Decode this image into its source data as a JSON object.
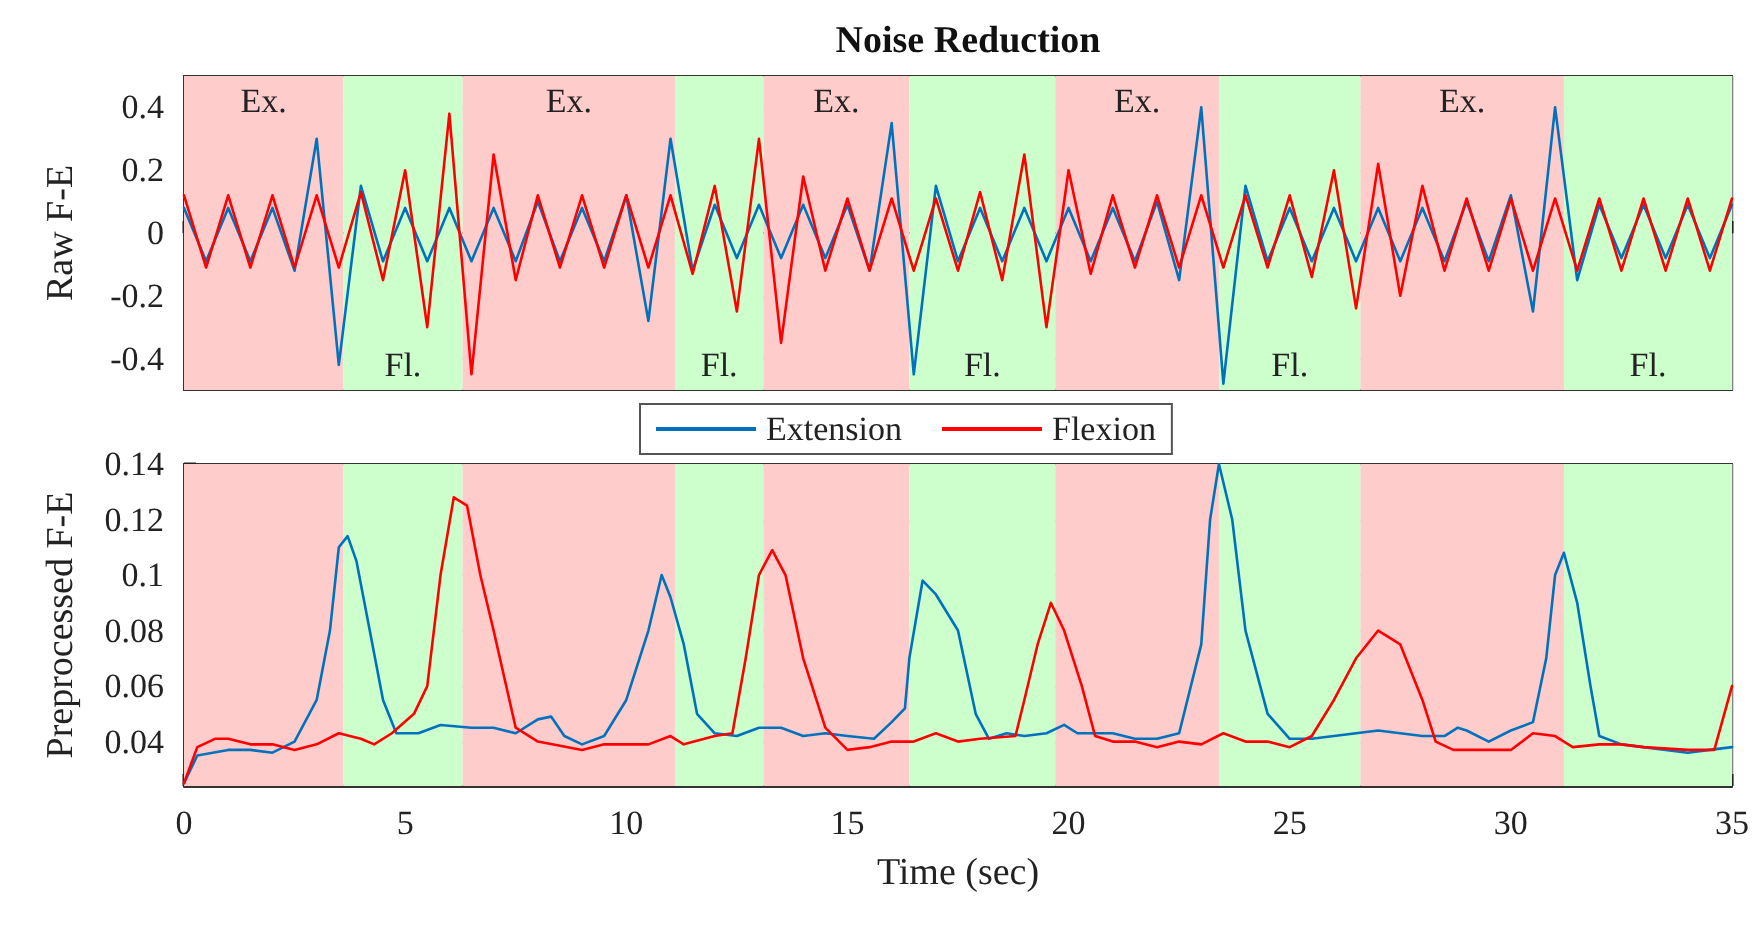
{
  "chart_data": [
    {
      "type": "line",
      "title": "Noise Reduction",
      "ylabel": "Raw F-E",
      "x": [
        0,
        0.5,
        1,
        1.5,
        2,
        2.5,
        3,
        3.5,
        4,
        4.5,
        5,
        5.5,
        6,
        6.5,
        7,
        7.5,
        8,
        8.5,
        9,
        9.5,
        10,
        10.5,
        11,
        11.5,
        12,
        12.5,
        13,
        13.5,
        14,
        14.5,
        15,
        15.5,
        16,
        16.5,
        17,
        17.5,
        18,
        18.5,
        19,
        19.5,
        20,
        20.5,
        21,
        21.5,
        22,
        22.5,
        23,
        23.5,
        24,
        24.5,
        25,
        25.5,
        26,
        26.5,
        27,
        27.5,
        28,
        28.5,
        29,
        29.5,
        30,
        30.5,
        31,
        31.5,
        32,
        32.5,
        33,
        33.5,
        34,
        34.5,
        35
      ],
      "series": [
        {
          "color": "#0072bd",
          "values": [
            0.08,
            -0.09,
            0.08,
            -0.09,
            0.08,
            -0.12,
            0.3,
            -0.42,
            0.15,
            -0.09,
            0.08,
            -0.09,
            0.08,
            -0.09,
            0.08,
            -0.09,
            0.1,
            -0.09,
            0.08,
            -0.09,
            0.12,
            -0.28,
            0.3,
            -0.12,
            0.09,
            -0.08,
            0.09,
            -0.08,
            0.09,
            -0.08,
            0.09,
            -0.12,
            0.35,
            -0.45,
            0.15,
            -0.09,
            0.08,
            -0.09,
            0.08,
            -0.09,
            0.08,
            -0.09,
            0.08,
            -0.09,
            0.1,
            -0.15,
            0.4,
            -0.48,
            0.15,
            -0.09,
            0.08,
            -0.09,
            0.08,
            -0.09,
            0.08,
            -0.09,
            0.08,
            -0.09,
            0.1,
            -0.09,
            0.12,
            -0.25,
            0.4,
            -0.15,
            0.09,
            -0.08,
            0.09,
            -0.08,
            0.09,
            -0.08,
            0.09
          ]
        },
        {
          "color": "#ff0000",
          "values": [
            0.12,
            -0.11,
            0.12,
            -0.11,
            0.12,
            -0.11,
            0.12,
            -0.11,
            0.13,
            -0.15,
            0.2,
            -0.3,
            0.38,
            -0.45,
            0.25,
            -0.15,
            0.12,
            -0.11,
            0.12,
            -0.11,
            0.12,
            -0.11,
            0.12,
            -0.13,
            0.15,
            -0.25,
            0.3,
            -0.35,
            0.18,
            -0.12,
            0.11,
            -0.12,
            0.11,
            -0.12,
            0.11,
            -0.12,
            0.13,
            -0.15,
            0.25,
            -0.3,
            0.2,
            -0.13,
            0.12,
            -0.11,
            0.12,
            -0.11,
            0.12,
            -0.11,
            0.12,
            -0.11,
            0.12,
            -0.14,
            0.2,
            -0.24,
            0.22,
            -0.2,
            0.15,
            -0.12,
            0.11,
            -0.12,
            0.11,
            -0.12,
            0.11,
            -0.12,
            0.11,
            -0.12,
            0.11,
            -0.12,
            0.11,
            -0.12,
            0.11
          ]
        }
      ],
      "xlim": [
        0,
        35
      ],
      "xticks": [
        0,
        5,
        10,
        15,
        20,
        25,
        30,
        35
      ],
      "ylim": [
        -0.5,
        0.5
      ],
      "yticks": [
        -0.4,
        -0.2,
        0,
        0.2,
        0.4
      ],
      "tick_labels": "y",
      "grid": true,
      "legend": false,
      "bands": [
        {
          "axis": "x",
          "from": 0,
          "to": 3.6,
          "label": "Ex.",
          "color": "#ffcccc"
        },
        {
          "axis": "x",
          "from": 3.6,
          "to": 6.3,
          "label": "Fl.",
          "color": "#ccffcc"
        },
        {
          "axis": "x",
          "from": 6.3,
          "to": 11.1,
          "label": "Ex.",
          "color": "#ffcccc"
        },
        {
          "axis": "x",
          "from": 11.1,
          "to": 13.1,
          "label": "Fl.",
          "color": "#ccffcc"
        },
        {
          "axis": "x",
          "from": 13.1,
          "to": 16.4,
          "label": "Ex.",
          "color": "#ffcccc"
        },
        {
          "axis": "x",
          "from": 16.4,
          "to": 19.7,
          "label": "Fl.",
          "color": "#ccffcc"
        },
        {
          "axis": "x",
          "from": 19.7,
          "to": 23.4,
          "label": "Ex.",
          "color": "#ffcccc"
        },
        {
          "axis": "x",
          "from": 23.4,
          "to": 26.6,
          "label": "Fl.",
          "color": "#ccffcc"
        },
        {
          "axis": "x",
          "from": 26.6,
          "to": 31.2,
          "label": "Ex.",
          "color": "#ffcccc"
        },
        {
          "axis": "x",
          "from": 31.2,
          "to": 35,
          "label": "Fl.",
          "color": "#ccffcc"
        }
      ]
    },
    {
      "type": "line",
      "xlabel": "Time (sec)",
      "ylabel": "Preprocessed F-E",
      "series": [
        {
          "name": "Extension",
          "color": "#0072bd",
          "x": [
            0,
            0.3,
            1,
            1.5,
            2,
            2.5,
            3,
            3.3,
            3.5,
            3.7,
            3.9,
            4.2,
            4.5,
            4.8,
            5.3,
            5.8,
            6.5,
            7,
            7.5,
            8,
            8.3,
            8.6,
            9,
            9.5,
            10,
            10.5,
            10.8,
            11,
            11.3,
            11.6,
            12,
            12.5,
            13,
            13.5,
            14,
            14.5,
            15,
            15.6,
            16,
            16.3,
            16.4,
            16.7,
            17,
            17.5,
            17.9,
            18.2,
            18.6,
            19,
            19.5,
            19.9,
            20.2,
            20.7,
            21,
            21.5,
            22,
            22.5,
            23,
            23.2,
            23.4,
            23.7,
            24,
            24.5,
            25,
            25.5,
            26,
            26.5,
            27,
            27.5,
            28,
            28.5,
            28.8,
            29,
            29.5,
            30,
            30.5,
            30.8,
            31,
            31.2,
            31.5,
            31.8,
            32,
            32.5,
            33.5,
            34,
            34.5,
            35
          ],
          "values": [
            0.025,
            0.035,
            0.037,
            0.037,
            0.036,
            0.04,
            0.055,
            0.08,
            0.11,
            0.114,
            0.105,
            0.08,
            0.055,
            0.043,
            0.043,
            0.046,
            0.045,
            0.045,
            0.043,
            0.048,
            0.049,
            0.042,
            0.039,
            0.042,
            0.055,
            0.08,
            0.1,
            0.092,
            0.075,
            0.05,
            0.043,
            0.042,
            0.045,
            0.045,
            0.042,
            0.043,
            0.042,
            0.041,
            0.047,
            0.052,
            0.07,
            0.098,
            0.093,
            0.08,
            0.05,
            0.041,
            0.043,
            0.042,
            0.043,
            0.046,
            0.043,
            0.043,
            0.043,
            0.041,
            0.041,
            0.043,
            0.075,
            0.12,
            0.14,
            0.12,
            0.08,
            0.05,
            0.041,
            0.041,
            0.042,
            0.043,
            0.044,
            0.043,
            0.042,
            0.042,
            0.045,
            0.044,
            0.04,
            0.044,
            0.047,
            0.07,
            0.1,
            0.108,
            0.09,
            0.06,
            0.042,
            0.039,
            0.037,
            0.036,
            0.037,
            0.038
          ]
        },
        {
          "name": "Flexion",
          "color": "#ff0000",
          "x": [
            0,
            0.3,
            0.7,
            1,
            1.5,
            2,
            2.5,
            3,
            3.5,
            4,
            4.3,
            4.7,
            5.2,
            5.5,
            5.8,
            6.1,
            6.4,
            6.7,
            7,
            7.5,
            8,
            9,
            9.5,
            10,
            10.5,
            11,
            11.3,
            12,
            12.4,
            12.7,
            13,
            13.3,
            13.6,
            14,
            14.5,
            15,
            15.5,
            16,
            16.5,
            17,
            17.5,
            18,
            18.8,
            19,
            19.3,
            19.6,
            19.9,
            20.3,
            20.6,
            21,
            21.5,
            22,
            22.5,
            23,
            23.5,
            24,
            24.5,
            25,
            25.5,
            26,
            26.5,
            27,
            27.5,
            28,
            28.3,
            28.7,
            29.5,
            30,
            30.5,
            31,
            31.4,
            32,
            32.5,
            33,
            34,
            34.6,
            35
          ],
          "values": [
            0.025,
            0.038,
            0.041,
            0.041,
            0.039,
            0.039,
            0.037,
            0.039,
            0.043,
            0.041,
            0.039,
            0.043,
            0.05,
            0.06,
            0.1,
            0.128,
            0.125,
            0.1,
            0.08,
            0.045,
            0.04,
            0.037,
            0.039,
            0.039,
            0.039,
            0.042,
            0.039,
            0.042,
            0.043,
            0.07,
            0.1,
            0.109,
            0.1,
            0.07,
            0.045,
            0.037,
            0.038,
            0.04,
            0.04,
            0.043,
            0.04,
            0.041,
            0.042,
            0.055,
            0.075,
            0.09,
            0.08,
            0.06,
            0.042,
            0.04,
            0.04,
            0.038,
            0.04,
            0.039,
            0.043,
            0.04,
            0.04,
            0.038,
            0.042,
            0.055,
            0.07,
            0.08,
            0.075,
            0.055,
            0.04,
            0.037,
            0.037,
            0.037,
            0.043,
            0.042,
            0.038,
            0.039,
            0.039,
            0.038,
            0.037,
            0.037,
            0.06
          ]
        }
      ],
      "xlim": [
        0,
        35
      ],
      "xticks": [
        0,
        5,
        10,
        15,
        20,
        25,
        30,
        35
      ],
      "ylim": [
        0.024,
        0.14
      ],
      "yticks": [
        0.04,
        0.06,
        0.08,
        0.1,
        0.12,
        0.14
      ],
      "grid": true,
      "legend": "top",
      "bands": [
        {
          "axis": "x",
          "from": 0,
          "to": 3.6,
          "color": "#ffcccc"
        },
        {
          "axis": "x",
          "from": 3.6,
          "to": 6.3,
          "color": "#ccffcc"
        },
        {
          "axis": "x",
          "from": 6.3,
          "to": 11.1,
          "color": "#ffcccc"
        },
        {
          "axis": "x",
          "from": 11.1,
          "to": 13.1,
          "color": "#ccffcc"
        },
        {
          "axis": "x",
          "from": 13.1,
          "to": 16.4,
          "color": "#ffcccc"
        },
        {
          "axis": "x",
          "from": 16.4,
          "to": 19.7,
          "color": "#ccffcc"
        },
        {
          "axis": "x",
          "from": 19.7,
          "to": 23.4,
          "color": "#ffcccc"
        },
        {
          "axis": "x",
          "from": 23.4,
          "to": 26.6,
          "color": "#ccffcc"
        },
        {
          "axis": "x",
          "from": 26.6,
          "to": 31.2,
          "color": "#ffcccc"
        },
        {
          "axis": "x",
          "from": 31.2,
          "to": 35,
          "color": "#ccffcc"
        }
      ]
    }
  ]
}
